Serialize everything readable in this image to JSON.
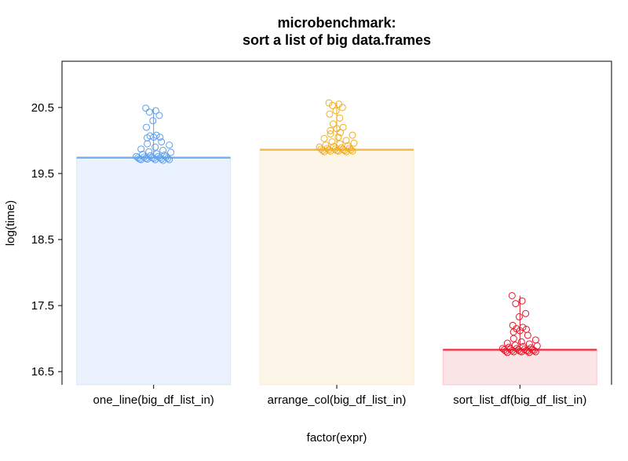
{
  "chart_data": {
    "type": "bar",
    "title": "microbenchmark:",
    "subtitle": "sort a list of big data.frames",
    "xlabel": "factor(expr)",
    "ylabel": "log(time)",
    "ylim": [
      16.3,
      21.2
    ],
    "yticks": [
      "16.5",
      "17.5",
      "18.5",
      "19.5",
      "20.5"
    ],
    "grid": false,
    "categories": [
      "one_line(big_df_list_in)",
      "arrange_col(big_df_list_in)",
      "sort_list_df(big_df_list_in)"
    ],
    "values": [
      19.74,
      19.86,
      16.83
    ],
    "colors": [
      "#5aa0f2",
      "#f0ad22",
      "#e8172a"
    ],
    "fill_colors": [
      "#eaf2fd",
      "#fdf6e8",
      "#fbe5e7"
    ],
    "points": [
      [
        20.49,
        20.45,
        20.43,
        20.38,
        20.3,
        20.2,
        20.08,
        20.07,
        20.05,
        20.05,
        20.04,
        19.98,
        19.95,
        19.93,
        19.9,
        19.87,
        19.85,
        19.83,
        19.82,
        19.8,
        19.79,
        19.78,
        19.77,
        19.76,
        19.76,
        19.75,
        19.75,
        19.74,
        19.74,
        19.74,
        19.73,
        19.73,
        19.73,
        19.72,
        19.72,
        19.72,
        19.71,
        19.71,
        19.71,
        19.7
      ],
      [
        20.57,
        20.55,
        20.53,
        20.5,
        20.45,
        20.4,
        20.34,
        20.25,
        20.2,
        20.18,
        20.15,
        20.12,
        20.1,
        20.08,
        20.05,
        20.03,
        20.0,
        19.98,
        19.96,
        19.95,
        19.93,
        19.92,
        19.91,
        19.9,
        19.89,
        19.88,
        19.88,
        19.87,
        19.87,
        19.86,
        19.86,
        19.86,
        19.85,
        19.85,
        19.85,
        19.84,
        19.84,
        19.84,
        19.83,
        19.83
      ],
      [
        17.65,
        17.57,
        17.53,
        17.38,
        17.33,
        17.2,
        17.17,
        17.15,
        17.14,
        17.12,
        17.1,
        17.05,
        17.0,
        16.98,
        16.95,
        16.93,
        16.92,
        16.9,
        16.89,
        16.88,
        16.87,
        16.86,
        16.85,
        16.85,
        16.84,
        16.84,
        16.83,
        16.83,
        16.83,
        16.82,
        16.82,
        16.82,
        16.81,
        16.81,
        16.81,
        16.8,
        16.8,
        16.8,
        16.79,
        16.79
      ]
    ]
  }
}
